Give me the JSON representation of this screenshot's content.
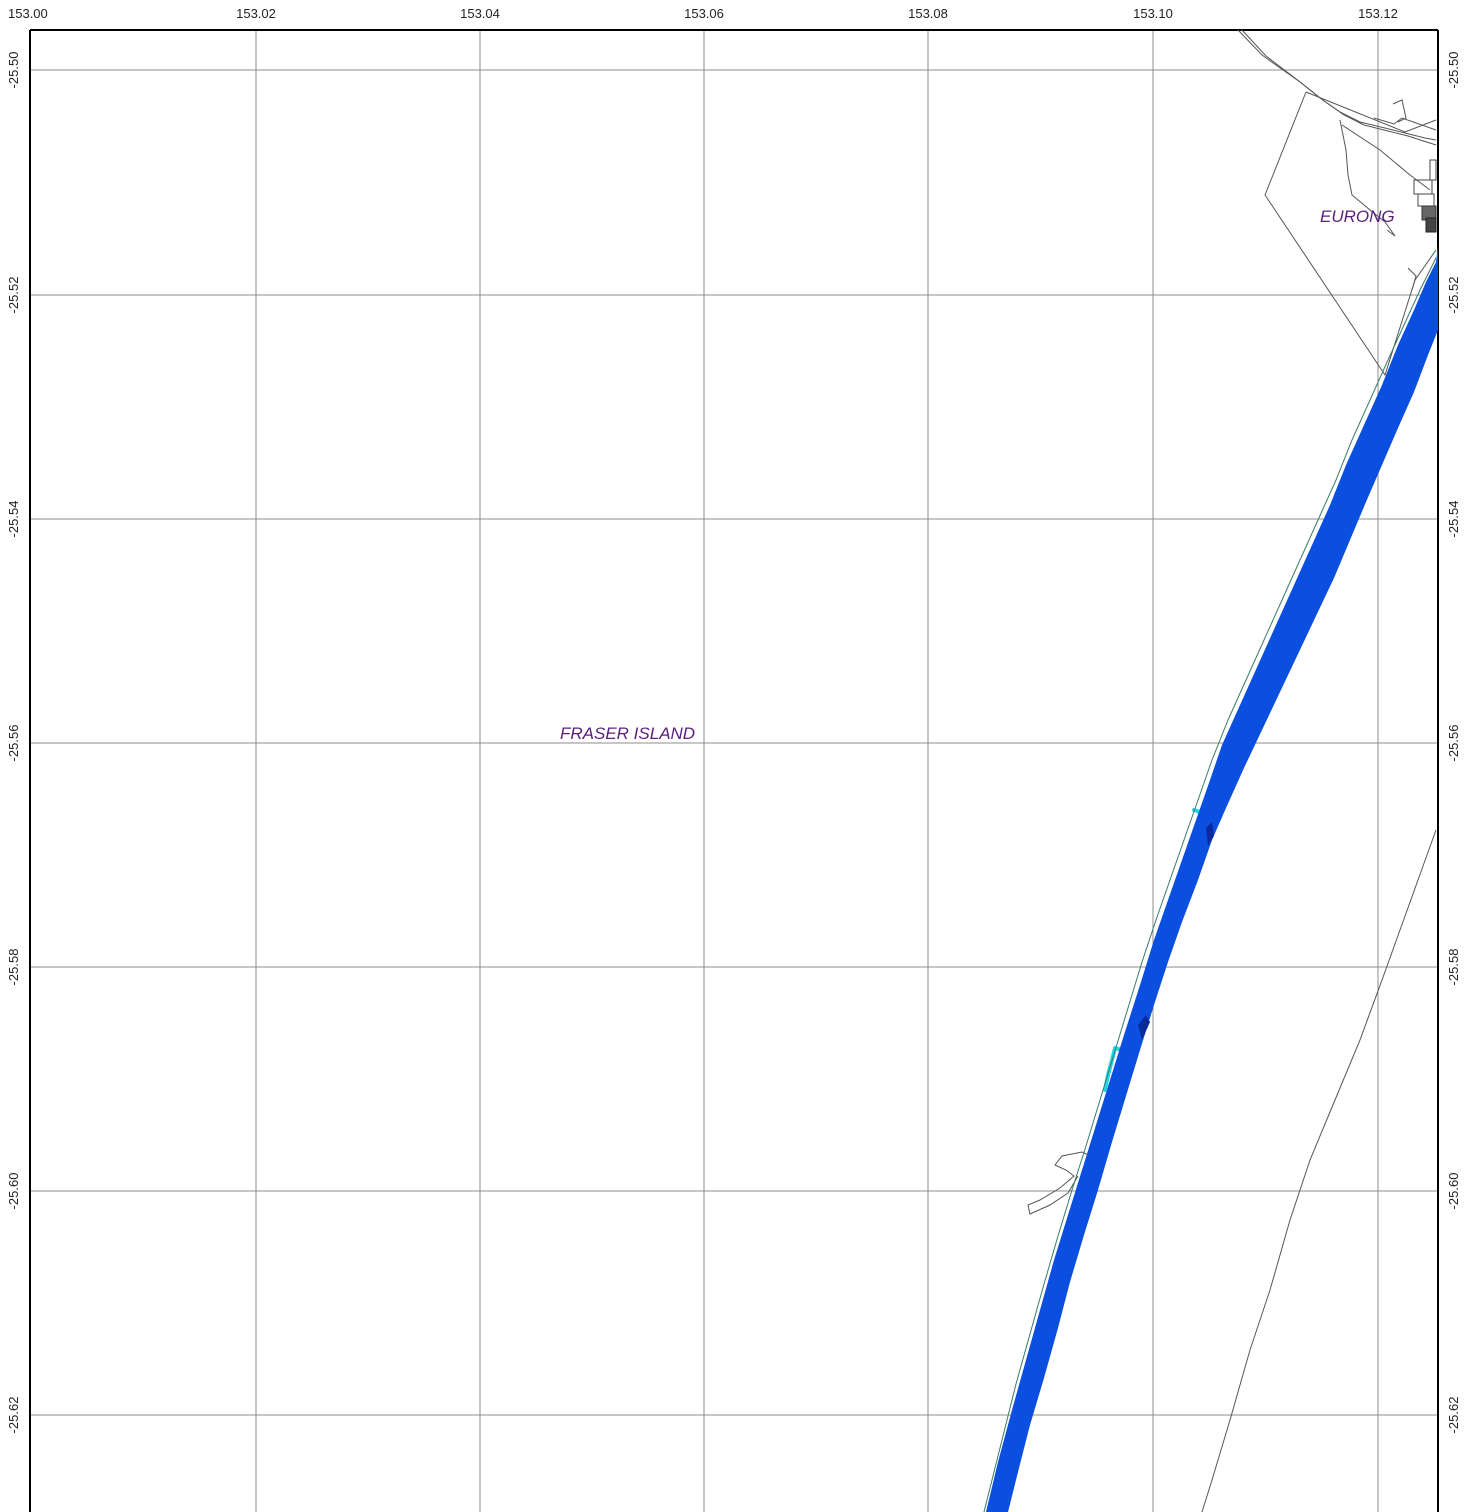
{
  "map": {
    "x_labels": [
      "153.00",
      "153.02",
      "153.04",
      "153.06",
      "153.08",
      "153.10",
      "153.12"
    ],
    "y_labels": [
      "-25.50",
      "-25.52",
      "-25.54",
      "-25.56",
      "-25.58",
      "-25.60",
      "-25.62"
    ],
    "places": {
      "eurong": "EURONG",
      "fraser_island": "FRASER ISLAND"
    },
    "colors": {
      "grid": "#8c8c8c",
      "frame": "#000000",
      "road": "#555555",
      "band": "#0b4fe0",
      "band_dark": "#0a2a9c",
      "shallow": "#22d6e6",
      "label": "#5a1f7a"
    }
  }
}
